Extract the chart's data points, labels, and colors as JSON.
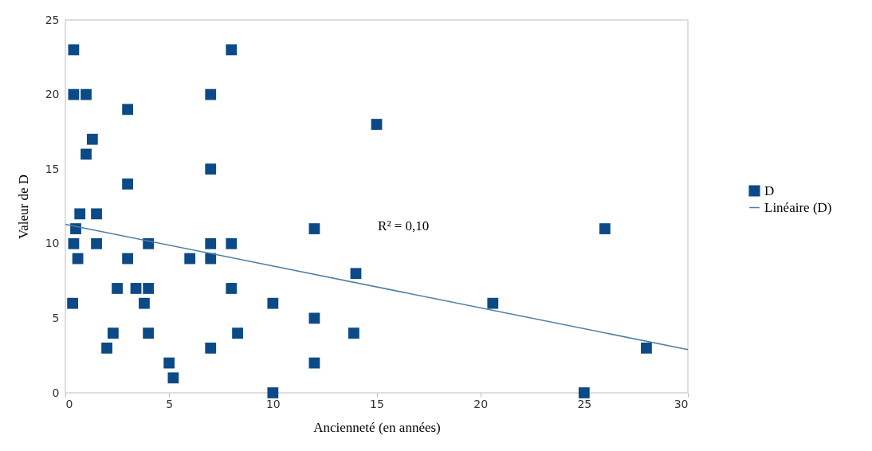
{
  "chart_data": {
    "type": "scatter",
    "xlabel": "Ancienneté (en années)",
    "ylabel": "Valeur de D",
    "xlim": [
      0,
      30
    ],
    "xticks": [
      0,
      5,
      10,
      15,
      20,
      25,
      30
    ],
    "ylim": [
      0,
      25
    ],
    "yticks": [
      0,
      5,
      10,
      15,
      20,
      25
    ],
    "legend": "right",
    "annotations": [
      "R² = 0,10"
    ],
    "series": [
      {
        "name": "D",
        "marker": "square",
        "color": "#0b4a86",
        "x": [
          0.35,
          0.4,
          0.4,
          0.4,
          0.5,
          0.6,
          0.7,
          1.0,
          1.0,
          1.3,
          1.5,
          1.5,
          2.0,
          2.3,
          2.5,
          3.0,
          3.0,
          3.0,
          3.4,
          3.8,
          4.0,
          4.0,
          4.0,
          5.0,
          5.2,
          6.0,
          7.0,
          7.0,
          7.0,
          7.0,
          7.0,
          8.0,
          8.0,
          8.0,
          8.3,
          10.0,
          10.0,
          12.0,
          12.0,
          12.0,
          13.9,
          14.0,
          15.0,
          20.6,
          25.0,
          26.0,
          28.0
        ],
        "values": [
          6,
          23,
          20,
          10,
          11,
          9,
          12,
          20,
          16,
          17,
          10,
          12,
          3,
          4,
          7,
          19,
          14,
          9,
          7,
          6,
          10,
          7,
          4,
          2,
          1,
          9,
          20,
          15,
          10,
          9,
          3,
          23,
          10,
          7,
          4,
          0,
          6,
          11,
          5,
          2,
          4,
          8,
          18,
          6,
          0,
          11,
          3
        ]
      },
      {
        "name": "Linéaire (D)",
        "type": "line",
        "marker": "none",
        "color": "#4f7fa3",
        "x": [
          0,
          30
        ],
        "values": [
          11.3,
          2.9
        ]
      }
    ]
  }
}
